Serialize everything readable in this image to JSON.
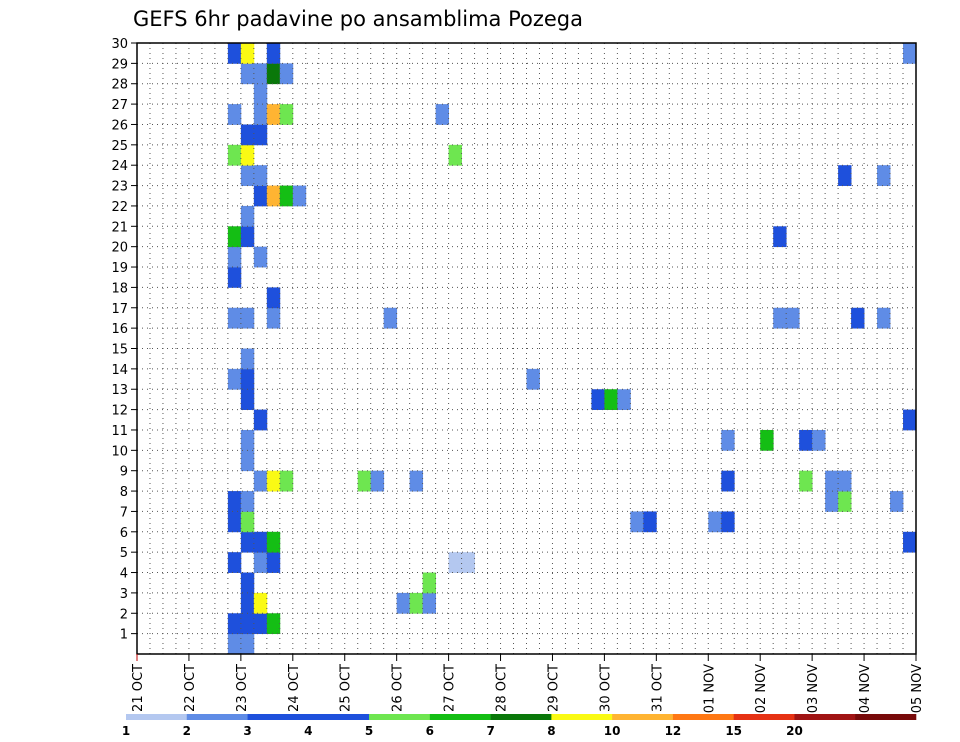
{
  "chart_data": {
    "type": "heatmap",
    "title": "GEFS 6hr padavine po ansamblima Pozega",
    "xlabel": "",
    "ylabel": "",
    "x_ticks": [
      "21 OCT",
      "22 OCT",
      "23 OCT",
      "24 OCT",
      "25 OCT",
      "26 OCT",
      "27 OCT",
      "28 OCT",
      "29 OCT",
      "30 OCT",
      "31 OCT",
      "01 NOV",
      "02 NOV",
      "03 NOV",
      "04 NOV",
      "05 NOV"
    ],
    "y_ticks": [
      1,
      2,
      3,
      4,
      5,
      6,
      7,
      8,
      9,
      10,
      11,
      12,
      13,
      14,
      15,
      16,
      17,
      18,
      19,
      20,
      21,
      22,
      23,
      24,
      25,
      26,
      27,
      28,
      29,
      30
    ],
    "xlim": [
      0,
      60
    ],
    "ylim": [
      0,
      30
    ],
    "x_unit": "6-hour step from 21 OCT 00Z",
    "grid": true,
    "colorbar": {
      "levels": [
        "1",
        "2",
        "3",
        "4",
        "5",
        "6",
        "7",
        "8",
        "10",
        "12",
        "15",
        "20"
      ],
      "colors": [
        "#b4c8f0",
        "#5f8ce6",
        "#1e50dc",
        "#1e50dc",
        "#6ee650",
        "#14be14",
        "#0a780a",
        "#fafa14",
        "#ffb432",
        "#ff7814",
        "#e63214",
        "#a01414",
        "#780a0a"
      ]
    },
    "cells": [
      {
        "x": 7,
        "y": 0,
        "c": 1
      },
      {
        "x": 8,
        "y": 0,
        "c": 1
      },
      {
        "x": 8,
        "y": 1,
        "c": 2
      },
      {
        "x": 9,
        "y": 1,
        "c": 3
      },
      {
        "x": 10,
        "y": 1,
        "c": 5
      },
      {
        "x": 7,
        "y": 1,
        "c": 2
      },
      {
        "x": 8,
        "y": 2,
        "c": 2
      },
      {
        "x": 9,
        "y": 2,
        "c": 7
      },
      {
        "x": 20,
        "y": 2,
        "c": 1
      },
      {
        "x": 21,
        "y": 2,
        "c": 4
      },
      {
        "x": 22,
        "y": 2,
        "c": 1
      },
      {
        "x": 8,
        "y": 3,
        "c": 2
      },
      {
        "x": 22,
        "y": 3,
        "c": 4
      },
      {
        "x": 7,
        "y": 4,
        "c": 3
      },
      {
        "x": 9,
        "y": 4,
        "c": 1
      },
      {
        "x": 10,
        "y": 4,
        "c": 2
      },
      {
        "x": 24,
        "y": 4,
        "c": 0
      },
      {
        "x": 25,
        "y": 4,
        "c": 0
      },
      {
        "x": 8,
        "y": 5,
        "c": 3
      },
      {
        "x": 9,
        "y": 5,
        "c": 2
      },
      {
        "x": 10,
        "y": 5,
        "c": 5
      },
      {
        "x": 59,
        "y": 5,
        "c": 2
      },
      {
        "x": 7,
        "y": 6,
        "c": 2
      },
      {
        "x": 8,
        "y": 6,
        "c": 4
      },
      {
        "x": 38,
        "y": 6,
        "c": 1
      },
      {
        "x": 39,
        "y": 6,
        "c": 3
      },
      {
        "x": 44,
        "y": 6,
        "c": 1
      },
      {
        "x": 45,
        "y": 6,
        "c": 2
      },
      {
        "x": 7,
        "y": 7,
        "c": 2
      },
      {
        "x": 8,
        "y": 7,
        "c": 1
      },
      {
        "x": 53,
        "y": 7,
        "c": 1
      },
      {
        "x": 54,
        "y": 7,
        "c": 4
      },
      {
        "x": 58,
        "y": 7,
        "c": 1
      },
      {
        "x": 9,
        "y": 8,
        "c": 1
      },
      {
        "x": 10,
        "y": 8,
        "c": 7
      },
      {
        "x": 11,
        "y": 8,
        "c": 4
      },
      {
        "x": 17,
        "y": 8,
        "c": 4
      },
      {
        "x": 18,
        "y": 8,
        "c": 1
      },
      {
        "x": 21,
        "y": 8,
        "c": 1
      },
      {
        "x": 45,
        "y": 8,
        "c": 2
      },
      {
        "x": 51,
        "y": 8,
        "c": 4
      },
      {
        "x": 53,
        "y": 8,
        "c": 1
      },
      {
        "x": 54,
        "y": 8,
        "c": 1
      },
      {
        "x": 8,
        "y": 9,
        "c": 1
      },
      {
        "x": 8,
        "y": 10,
        "c": 1
      },
      {
        "x": 45,
        "y": 10,
        "c": 1
      },
      {
        "x": 48,
        "y": 10,
        "c": 5
      },
      {
        "x": 51,
        "y": 10,
        "c": 3
      },
      {
        "x": 52,
        "y": 10,
        "c": 1
      },
      {
        "x": 9,
        "y": 11,
        "c": 3
      },
      {
        "x": 59,
        "y": 11,
        "c": 2
      },
      {
        "x": 8,
        "y": 12,
        "c": 3
      },
      {
        "x": 35,
        "y": 12,
        "c": 2
      },
      {
        "x": 36,
        "y": 12,
        "c": 5
      },
      {
        "x": 37,
        "y": 12,
        "c": 1
      },
      {
        "x": 7,
        "y": 13,
        "c": 1
      },
      {
        "x": 8,
        "y": 13,
        "c": 3
      },
      {
        "x": 30,
        "y": 13,
        "c": 1
      },
      {
        "x": 8,
        "y": 14,
        "c": 1
      },
      {
        "x": 7,
        "y": 16,
        "c": 1
      },
      {
        "x": 8,
        "y": 16,
        "c": 1
      },
      {
        "x": 10,
        "y": 16,
        "c": 1
      },
      {
        "x": 19,
        "y": 16,
        "c": 1
      },
      {
        "x": 49,
        "y": 16,
        "c": 1
      },
      {
        "x": 50,
        "y": 16,
        "c": 1
      },
      {
        "x": 55,
        "y": 16,
        "c": 3
      },
      {
        "x": 57,
        "y": 16,
        "c": 1
      },
      {
        "x": 10,
        "y": 17,
        "c": 3
      },
      {
        "x": 7,
        "y": 18,
        "c": 2
      },
      {
        "x": 7,
        "y": 19,
        "c": 1
      },
      {
        "x": 9,
        "y": 19,
        "c": 1
      },
      {
        "x": 7,
        "y": 20,
        "c": 5
      },
      {
        "x": 8,
        "y": 20,
        "c": 2
      },
      {
        "x": 49,
        "y": 20,
        "c": 2
      },
      {
        "x": 8,
        "y": 21,
        "c": 1
      },
      {
        "x": 9,
        "y": 22,
        "c": 3
      },
      {
        "x": 10,
        "y": 22,
        "c": 8
      },
      {
        "x": 11,
        "y": 22,
        "c": 5
      },
      {
        "x": 12,
        "y": 22,
        "c": 1
      },
      {
        "x": 8,
        "y": 23,
        "c": 1
      },
      {
        "x": 9,
        "y": 23,
        "c": 1
      },
      {
        "x": 54,
        "y": 23,
        "c": 3
      },
      {
        "x": 57,
        "y": 23,
        "c": 1
      },
      {
        "x": 7,
        "y": 24,
        "c": 4
      },
      {
        "x": 8,
        "y": 24,
        "c": 7
      },
      {
        "x": 24,
        "y": 24,
        "c": 4
      },
      {
        "x": 8,
        "y": 25,
        "c": 3
      },
      {
        "x": 9,
        "y": 25,
        "c": 3
      },
      {
        "x": 7,
        "y": 26,
        "c": 1
      },
      {
        "x": 9,
        "y": 26,
        "c": 1
      },
      {
        "x": 10,
        "y": 26,
        "c": 8
      },
      {
        "x": 11,
        "y": 26,
        "c": 4
      },
      {
        "x": 23,
        "y": 26,
        "c": 1
      },
      {
        "x": 9,
        "y": 27,
        "c": 1
      },
      {
        "x": 8,
        "y": 28,
        "c": 1
      },
      {
        "x": 9,
        "y": 28,
        "c": 1
      },
      {
        "x": 10,
        "y": 28,
        "c": 6
      },
      {
        "x": 11,
        "y": 28,
        "c": 1
      },
      {
        "x": 7,
        "y": 29,
        "c": 3
      },
      {
        "x": 8,
        "y": 29,
        "c": 7
      },
      {
        "x": 10,
        "y": 29,
        "c": 3
      },
      {
        "x": 59,
        "y": 29,
        "c": 1
      }
    ]
  }
}
